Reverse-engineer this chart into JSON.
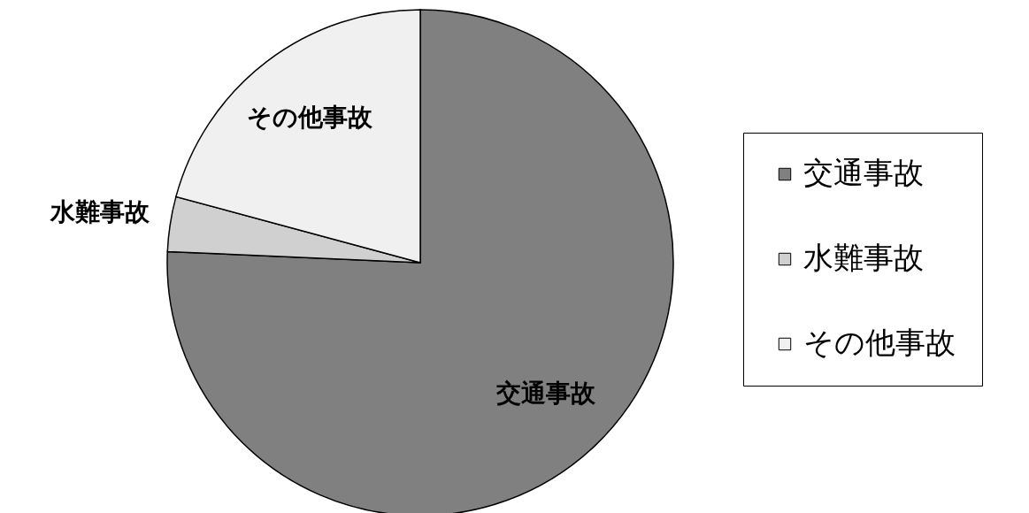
{
  "chart_data": {
    "type": "pie",
    "categories": [
      "交通事故",
      "水難事故",
      "その他事故"
    ],
    "values": [
      75.7,
      3.5,
      20.8
    ],
    "colors": [
      "#808080",
      "#d0d0d0",
      "#f0f0f0"
    ],
    "legend": "right"
  }
}
